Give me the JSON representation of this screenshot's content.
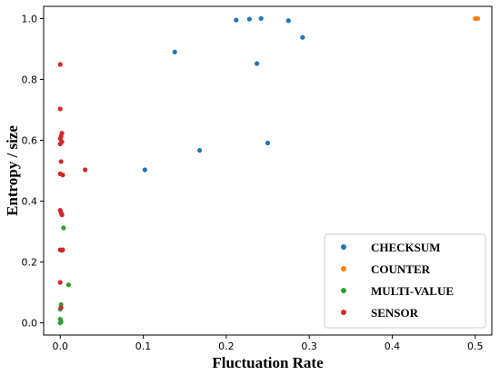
{
  "chart_data": {
    "type": "scatter",
    "title": "",
    "xlabel": "Fluctuation Rate",
    "ylabel": "Entropy / size",
    "xlim": [
      -0.02,
      0.52
    ],
    "ylim": [
      -0.04,
      1.04
    ],
    "xticks": [
      "0.0",
      "0.1",
      "0.2",
      "0.3",
      "0.4",
      "0.5"
    ],
    "yticks": [
      "0.0",
      "0.2",
      "0.4",
      "0.6",
      "0.8",
      "1.0"
    ],
    "grid": false,
    "legend_position": "lower-right",
    "series": [
      {
        "name": "CHECKSUM",
        "color": "#1f77b4",
        "points": [
          [
            0.102,
            0.503
          ],
          [
            0.138,
            0.89
          ],
          [
            0.168,
            0.567
          ],
          [
            0.212,
            0.995
          ],
          [
            0.228,
            0.998
          ],
          [
            0.237,
            0.852
          ],
          [
            0.242,
            1.0
          ],
          [
            0.25,
            0.591
          ],
          [
            0.275,
            0.993
          ],
          [
            0.292,
            0.938
          ]
        ]
      },
      {
        "name": "COUNTER",
        "color": "#ff7f0e",
        "points": [
          [
            0.5,
            1.0
          ],
          [
            0.503,
            1.0
          ]
        ]
      },
      {
        "name": "MULTI-VALUE",
        "color": "#2ca02c",
        "points": [
          [
            0.004,
            0.312
          ],
          [
            0.01,
            0.125
          ],
          [
            0.001,
            0.06
          ],
          [
            0.0,
            0.045
          ],
          [
            0.0,
            0.012
          ],
          [
            0.001,
            0.004
          ],
          [
            0.0,
            0.0
          ],
          [
            0.002,
            0.238
          ]
        ]
      },
      {
        "name": "SENSOR",
        "color": "#d62728",
        "points": [
          [
            0.0,
            0.849
          ],
          [
            0.0,
            0.703
          ],
          [
            0.002,
            0.623
          ],
          [
            0.001,
            0.613
          ],
          [
            0.0,
            0.605
          ],
          [
            0.002,
            0.595
          ],
          [
            0.0,
            0.588
          ],
          [
            0.001,
            0.53
          ],
          [
            0.0,
            0.49
          ],
          [
            0.003,
            0.486
          ],
          [
            0.0,
            0.37
          ],
          [
            0.001,
            0.362
          ],
          [
            0.002,
            0.355
          ],
          [
            0.0,
            0.24
          ],
          [
            0.003,
            0.24
          ],
          [
            0.0,
            0.133
          ],
          [
            0.001,
            0.05
          ],
          [
            0.03,
            0.503
          ]
        ]
      }
    ]
  }
}
